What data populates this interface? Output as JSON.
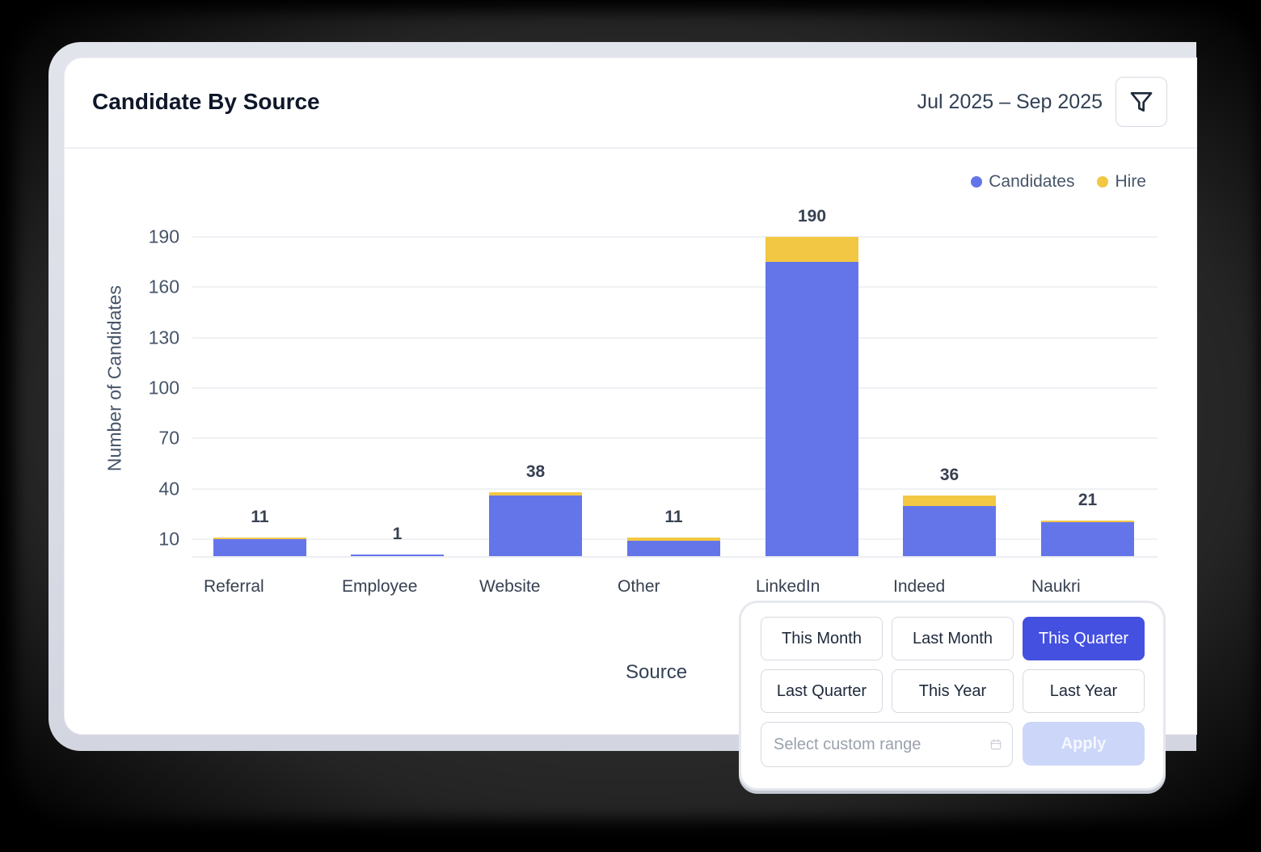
{
  "card": {
    "title": "Candidate By Source",
    "date_range": "Jul 2025 – Sep 2025",
    "filter_icon": "filter-funnel-icon"
  },
  "legend": [
    {
      "label": "Candidates",
      "color": "#6475ea"
    },
    {
      "label": "Hire",
      "color": "#f2c744"
    }
  ],
  "chart_data": {
    "type": "bar",
    "stacked": true,
    "title": "Candidate By Source",
    "xlabel": "Source",
    "ylabel": "Number of Candidates",
    "categories": [
      "Referral",
      "Employee",
      "Website",
      "Other",
      "LinkedIn",
      "Indeed",
      "Naukri"
    ],
    "series": [
      {
        "name": "Candidates",
        "color": "#6475ea",
        "values": [
          10,
          1,
          36,
          9,
          175,
          30,
          20
        ]
      },
      {
        "name": "Hire",
        "color": "#f2c744",
        "values": [
          1,
          0,
          2,
          2,
          15,
          6,
          1
        ]
      }
    ],
    "totals": [
      11,
      1,
      38,
      11,
      190,
      36,
      21
    ],
    "y_ticks": [
      10,
      40,
      70,
      100,
      130,
      160,
      190
    ],
    "ylim": [
      0,
      190
    ],
    "grid": true,
    "legend_position": "top-right"
  },
  "axis": {
    "y_title": "Number of Candidates",
    "x_title": "Source",
    "y_ticks": [
      "190",
      "160",
      "130",
      "100",
      "70",
      "40",
      "10"
    ]
  },
  "bars": [
    {
      "label": "Referral",
      "total": "11"
    },
    {
      "label": "Employee",
      "total": "1"
    },
    {
      "label": "Website",
      "total": "38"
    },
    {
      "label": "Other",
      "total": "11"
    },
    {
      "label": "LinkedIn",
      "total": "190"
    },
    {
      "label": "Indeed",
      "total": "36"
    },
    {
      "label": "Naukri",
      "total": "21"
    }
  ],
  "popover": {
    "presets": [
      {
        "label": "This Month",
        "active": false
      },
      {
        "label": "Last Month",
        "active": false
      },
      {
        "label": "This Quarter",
        "active": true
      },
      {
        "label": "Last Quarter",
        "active": false
      },
      {
        "label": "This Year",
        "active": false
      },
      {
        "label": "Last Year",
        "active": false
      }
    ],
    "custom_range_placeholder": "Select custom range",
    "custom_range_value": "",
    "calendar_icon": "calendar-icon",
    "apply_label": "Apply",
    "active_color": "#4450e0"
  }
}
